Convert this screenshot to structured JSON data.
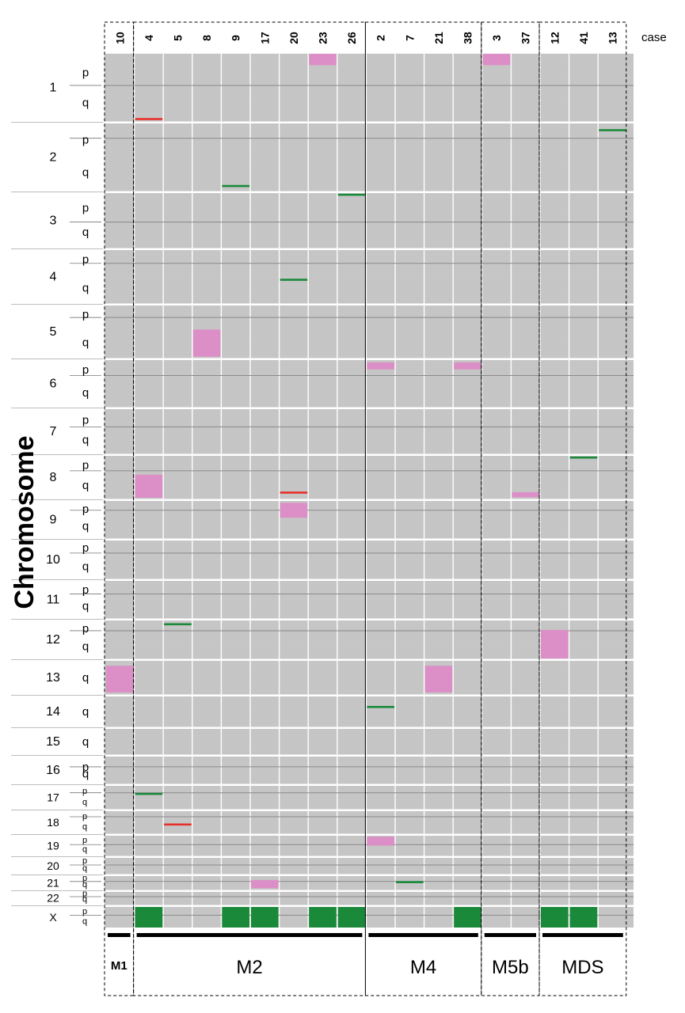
{
  "chart_data": {
    "type": "heatmap",
    "title": "",
    "ylabel": "Chromosome",
    "case_axis_label": "case",
    "cases": [
      "10",
      "4",
      "5",
      "8",
      "9",
      "17",
      "20",
      "23",
      "26",
      "2",
      "7",
      "21",
      "38",
      "3",
      "37",
      "12",
      "41",
      "13"
    ],
    "groups": [
      {
        "name": "M1",
        "case_count": 1
      },
      {
        "name": "M2",
        "case_count": 8
      },
      {
        "name": "M4",
        "case_count": 4
      },
      {
        "name": "M5b",
        "case_count": 2
      },
      {
        "name": "MDS",
        "case_count": 3
      }
    ],
    "chromosomes": [
      {
        "label": "1",
        "arms": [
          "p",
          "q"
        ]
      },
      {
        "label": "2",
        "arms": [
          "p",
          "q"
        ]
      },
      {
        "label": "3",
        "arms": [
          "p",
          "q"
        ]
      },
      {
        "label": "4",
        "arms": [
          "p",
          "q"
        ]
      },
      {
        "label": "5",
        "arms": [
          "p",
          "q"
        ]
      },
      {
        "label": "6",
        "arms": [
          "p",
          "q"
        ]
      },
      {
        "label": "7",
        "arms": [
          "p",
          "q"
        ]
      },
      {
        "label": "8",
        "arms": [
          "p",
          "q"
        ]
      },
      {
        "label": "9",
        "arms": [
          "p",
          "q"
        ]
      },
      {
        "label": "10",
        "arms": [
          "p",
          "q"
        ]
      },
      {
        "label": "11",
        "arms": [
          "p",
          "q"
        ]
      },
      {
        "label": "12",
        "arms": [
          "p",
          "q"
        ]
      },
      {
        "label": "13",
        "arms": [
          "q"
        ]
      },
      {
        "label": "14",
        "arms": [
          "q"
        ]
      },
      {
        "label": "15",
        "arms": [
          "q"
        ]
      },
      {
        "label": "16",
        "arms": [
          "p",
          "q"
        ]
      },
      {
        "label": "17",
        "arms": [
          "p",
          "q"
        ]
      },
      {
        "label": "18",
        "arms": [
          "p",
          "q"
        ]
      },
      {
        "label": "19",
        "arms": [
          "p",
          "q"
        ]
      },
      {
        "label": "20",
        "arms": [
          "p",
          "q"
        ]
      },
      {
        "label": "21",
        "arms": [
          "p",
          "q"
        ]
      },
      {
        "label": "22",
        "arms": [
          "p",
          "q"
        ]
      },
      {
        "label": "X",
        "arms": [
          "p",
          "q"
        ]
      }
    ],
    "categories_legend": {
      "gain": "pink",
      "loss": "green",
      "other": "red"
    },
    "colors": {
      "background": "#c4c4c4",
      "gain": "#dc8fc6",
      "loss": "#1a8a3a",
      "other": "#e8302a",
      "centromere": "#8a8a8a"
    },
    "events": [
      {
        "case": "23",
        "chr": "1",
        "from": 0.0,
        "to": 0.17,
        "type": "gain"
      },
      {
        "case": "3",
        "chr": "1",
        "from": 0.0,
        "to": 0.17,
        "type": "gain"
      },
      {
        "case": "4",
        "chr": "1",
        "from": 0.97,
        "to": 0.97,
        "type": "other"
      },
      {
        "case": "13",
        "chr": "2",
        "from": 0.1,
        "to": 0.1,
        "type": "loss"
      },
      {
        "case": "9",
        "chr": "2",
        "from": 0.93,
        "to": 0.93,
        "type": "loss"
      },
      {
        "case": "26",
        "chr": "3",
        "from": 0.03,
        "to": 0.03,
        "type": "loss"
      },
      {
        "case": "20",
        "chr": "4",
        "from": 0.56,
        "to": 0.56,
        "type": "loss"
      },
      {
        "case": "8",
        "chr": "5",
        "from": 0.46,
        "to": 0.98,
        "type": "gain"
      },
      {
        "case": "2",
        "chr": "6",
        "from": 0.05,
        "to": 0.2,
        "type": "gain"
      },
      {
        "case": "38",
        "chr": "6",
        "from": 0.05,
        "to": 0.2,
        "type": "gain"
      },
      {
        "case": "41",
        "chr": "8",
        "from": 0.04,
        "to": 0.04,
        "type": "loss"
      },
      {
        "case": "4",
        "chr": "8",
        "from": 0.44,
        "to": 0.98,
        "type": "gain"
      },
      {
        "case": "20",
        "chr": "8",
        "from": 0.86,
        "to": 0.86,
        "type": "other"
      },
      {
        "case": "37",
        "chr": "8",
        "from": 0.85,
        "to": 0.97,
        "type": "gain"
      },
      {
        "case": "20",
        "chr": "9",
        "from": 0.05,
        "to": 0.45,
        "type": "gain"
      },
      {
        "case": "5",
        "chr": "12",
        "from": 0.1,
        "to": 0.1,
        "type": "loss"
      },
      {
        "case": "12",
        "chr": "12",
        "from": 0.25,
        "to": 1.0,
        "type": "gain"
      },
      {
        "case": "10",
        "chr": "13",
        "from": 0.15,
        "to": 0.95,
        "type": "gain"
      },
      {
        "case": "21",
        "chr": "13",
        "from": 0.15,
        "to": 0.95,
        "type": "gain"
      },
      {
        "case": "2",
        "chr": "14",
        "from": 0.35,
        "to": 0.35,
        "type": "loss"
      },
      {
        "case": "4",
        "chr": "17",
        "from": 0.35,
        "to": 0.35,
        "type": "loss"
      },
      {
        "case": "5",
        "chr": "18",
        "from": 0.6,
        "to": 0.6,
        "type": "other"
      },
      {
        "case": "2",
        "chr": "19",
        "from": 0.05,
        "to": 0.5,
        "type": "gain"
      },
      {
        "case": "17",
        "chr": "21",
        "from": 0.3,
        "to": 0.9,
        "type": "gain"
      },
      {
        "case": "7",
        "chr": "21",
        "from": 0.45,
        "to": 0.45,
        "type": "loss"
      },
      {
        "case": "4",
        "chr": "X",
        "from": 0.0,
        "to": 1.0,
        "type": "loss"
      },
      {
        "case": "9",
        "chr": "X",
        "from": 0.0,
        "to": 1.0,
        "type": "loss"
      },
      {
        "case": "17",
        "chr": "X",
        "from": 0.0,
        "to": 1.0,
        "type": "loss"
      },
      {
        "case": "23",
        "chr": "X",
        "from": 0.0,
        "to": 1.0,
        "type": "loss"
      },
      {
        "case": "26",
        "chr": "X",
        "from": 0.0,
        "to": 1.0,
        "type": "loss"
      },
      {
        "case": "38",
        "chr": "X",
        "from": 0.0,
        "to": 1.0,
        "type": "loss"
      },
      {
        "case": "12",
        "chr": "X",
        "from": 0.0,
        "to": 1.0,
        "type": "loss"
      },
      {
        "case": "41",
        "chr": "X",
        "from": 0.0,
        "to": 1.0,
        "type": "loss"
      }
    ]
  }
}
